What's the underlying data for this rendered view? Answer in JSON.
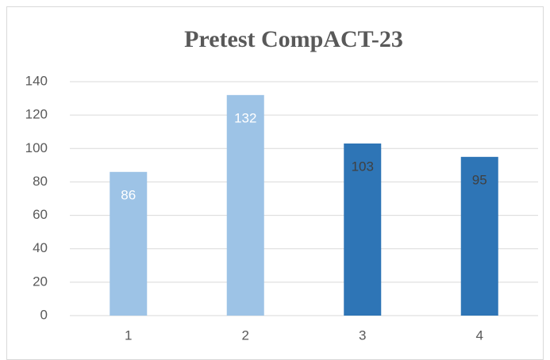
{
  "chart_data": {
    "type": "bar",
    "title": "Pretest CompACT-23",
    "categories": [
      "1",
      "2",
      "3",
      "4"
    ],
    "values": [
      86,
      132,
      103,
      95
    ],
    "colors": [
      "#9dc3e6",
      "#9dc3e6",
      "#2e75b6",
      "#2e75b6"
    ],
    "label_colors": [
      "#ffffff",
      "#ffffff",
      "#404040",
      "#404040"
    ],
    "ylim": [
      0,
      140
    ],
    "yticks": [
      0,
      20,
      40,
      60,
      80,
      100,
      120,
      140
    ],
    "grid": true
  }
}
